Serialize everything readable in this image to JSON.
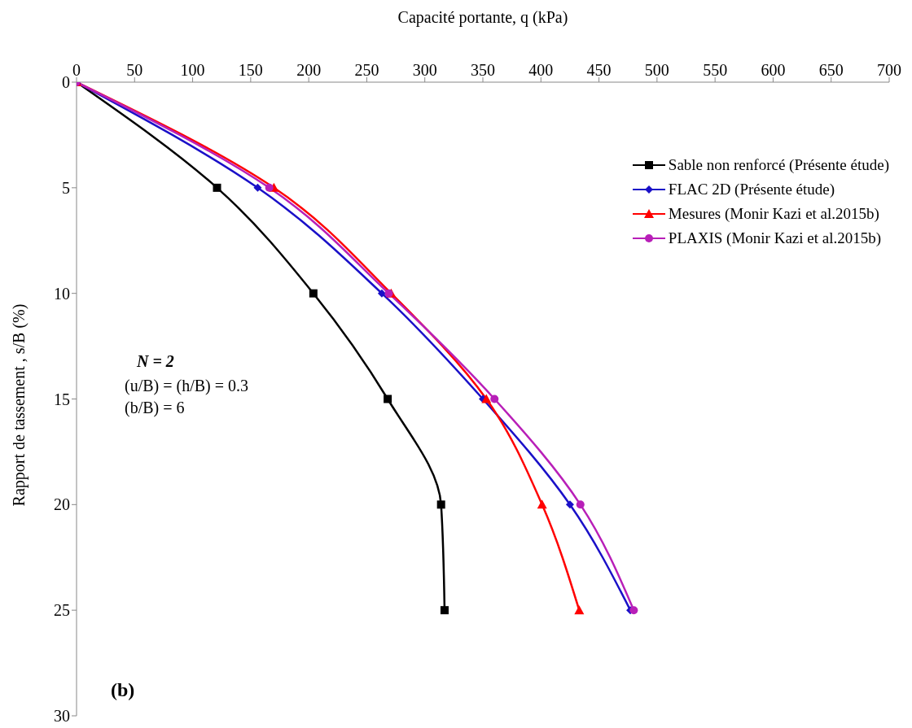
{
  "chart_data": {
    "type": "line",
    "xlabel": "Capacité portante, q (kPa)",
    "ylabel": "Rapport de tassement , s/B (%)",
    "xlim": [
      0,
      700
    ],
    "xticks": [
      0,
      50,
      100,
      150,
      200,
      250,
      300,
      350,
      400,
      450,
      500,
      550,
      600,
      650,
      700
    ],
    "ylim": [
      30,
      0
    ],
    "yticks": [
      0,
      5,
      10,
      15,
      20,
      25,
      30
    ],
    "grid": false,
    "legend": "top right",
    "series": [
      {
        "name": "Sable non renforcé  (Présente étude)",
        "color": "#000000",
        "marker": "square",
        "x": [
          0,
          121,
          204,
          268,
          314,
          317
        ],
        "values": [
          0,
          5,
          10,
          15,
          20,
          25
        ]
      },
      {
        "name": "FLAC 2D (Présente étude)",
        "color": "#1a10c8",
        "marker": "diamond",
        "x": [
          0,
          156,
          263,
          350,
          425,
          477
        ],
        "values": [
          0,
          5,
          10,
          15,
          20,
          25
        ]
      },
      {
        "name": "Mesures  (Monir Kazi et al.2015b)",
        "color": "#ff0000",
        "marker": "triangle",
        "x": [
          0,
          170,
          271,
          353,
          401,
          433
        ],
        "values": [
          0,
          5,
          10,
          15,
          20,
          25
        ]
      },
      {
        "name": "PLAXIS (Monir Kazi et al.2015b)",
        "color": "#b81fb8",
        "marker": "circle",
        "x": [
          0,
          166,
          269,
          360,
          434,
          480
        ],
        "values": [
          0,
          5,
          10,
          15,
          20,
          25
        ]
      }
    ],
    "annotations": [
      "N = 2",
      "(u/B) = (h/B) = 0.3",
      "(b/B) = 6",
      "(b)"
    ]
  }
}
